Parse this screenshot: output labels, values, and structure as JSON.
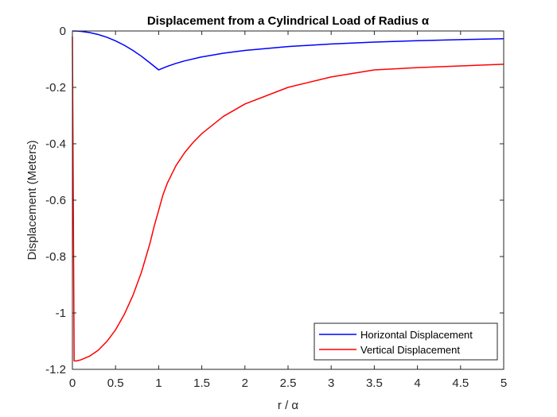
{
  "chart_data": {
    "type": "line",
    "title": "Displacement from a Cylindrical Load of Radius α",
    "xlabel": "r / α",
    "ylabel": "Displacement (Meters)",
    "xlim": [
      0,
      5
    ],
    "ylim": [
      -1.2,
      0
    ],
    "xticks": [
      0,
      0.5,
      1,
      1.5,
      2,
      2.5,
      3,
      3.5,
      4,
      4.5,
      5
    ],
    "yticks": [
      0,
      -0.2,
      -0.4,
      -0.6,
      -0.8,
      -1,
      -1.2
    ],
    "xtick_labels": [
      "0",
      "0.5",
      "1",
      "1.5",
      "2",
      "2.5",
      "3",
      "3.5",
      "4",
      "4.5",
      "5"
    ],
    "ytick_labels": [
      "0",
      "-0.2",
      "-0.4",
      "-0.6",
      "-0.8",
      "-1",
      "-1.2"
    ],
    "grid": false,
    "legend_position": "bottom-right",
    "series": [
      {
        "name": "Horizontal Displacement",
        "color": "#0000ff",
        "x": [
          0,
          0.05,
          0.1,
          0.2,
          0.3,
          0.4,
          0.5,
          0.6,
          0.7,
          0.8,
          0.9,
          1.0,
          1.1,
          1.2,
          1.3,
          1.5,
          1.75,
          2.0,
          2.5,
          3.0,
          3.5,
          4.0,
          4.5,
          5.0
        ],
        "y": [
          0,
          -0.0003,
          -0.0014,
          -0.0056,
          -0.0126,
          -0.0224,
          -0.035,
          -0.0504,
          -0.0686,
          -0.0896,
          -0.1134,
          -0.138,
          -0.1255,
          -0.115,
          -0.1062,
          -0.092,
          -0.0789,
          -0.069,
          -0.0552,
          -0.046,
          -0.0394,
          -0.0345,
          -0.0307,
          -0.0276
        ]
      },
      {
        "name": "Vertical Displacement",
        "color": "#ff0000",
        "x": [
          0,
          0.02,
          0.05,
          0.1,
          0.2,
          0.3,
          0.4,
          0.5,
          0.6,
          0.7,
          0.8,
          0.9,
          0.95,
          1.0,
          1.05,
          1.1,
          1.2,
          1.3,
          1.4,
          1.5,
          1.75,
          2.0,
          2.5,
          3.0,
          3.5,
          4.0,
          4.5,
          5.0
        ],
        "y": [
          -0.02,
          -1.17,
          -1.17,
          -1.166,
          -1.153,
          -1.132,
          -1.101,
          -1.06,
          -1.006,
          -0.939,
          -0.856,
          -0.752,
          -0.69,
          -0.636,
          -0.581,
          -0.54,
          -0.478,
          -0.432,
          -0.395,
          -0.364,
          -0.303,
          -0.259,
          -0.2,
          -0.163,
          -0.138,
          -0.13,
          -0.124,
          -0.118
        ]
      }
    ]
  }
}
